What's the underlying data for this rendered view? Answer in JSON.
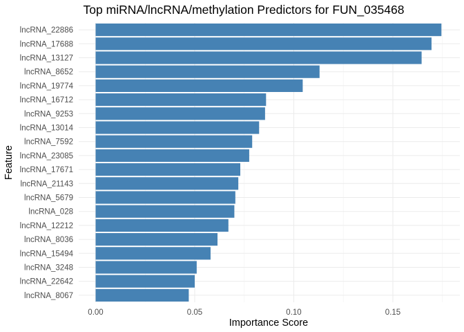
{
  "chart_data": {
    "type": "bar",
    "orientation": "horizontal",
    "title": "Top miRNA/lncRNA/methylation Predictors for FUN_035468",
    "xlabel": "Importance Score",
    "ylabel": "Feature",
    "xlim": [
      0,
      0.175
    ],
    "x_ticks": [
      0.0,
      0.05,
      0.1,
      0.15
    ],
    "x_tick_labels": [
      "0.00",
      "0.05",
      "0.10",
      "0.15"
    ],
    "grid": true,
    "legend": "none",
    "bar_color": "#4682B4",
    "categories": [
      "lncRNA_22886",
      "lncRNA_17688",
      "lncRNA_13127",
      "lncRNA_8652",
      "lncRNA_19774",
      "lncRNA_16712",
      "lncRNA_9253",
      "lncRNA_13014",
      "lncRNA_7592",
      "lncRNA_23085",
      "lncRNA_17671",
      "lncRNA_21143",
      "lncRNA_5679",
      "lncRNA_028",
      "lncRNA_12212",
      "lncRNA_8036",
      "lncRNA_15494",
      "lncRNA_3248",
      "lncRNA_22642",
      "lncRNA_8067"
    ],
    "values": [
      0.1745,
      0.1695,
      0.1645,
      0.113,
      0.1045,
      0.086,
      0.0855,
      0.0825,
      0.079,
      0.0775,
      0.073,
      0.072,
      0.0705,
      0.07,
      0.067,
      0.0615,
      0.058,
      0.051,
      0.05,
      0.047
    ]
  }
}
